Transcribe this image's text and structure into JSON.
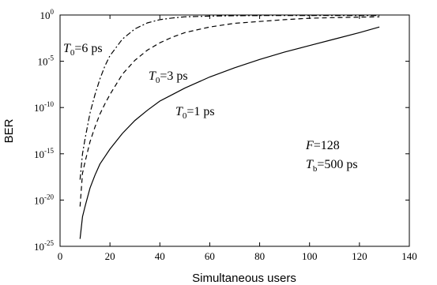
{
  "chart_data": {
    "type": "line",
    "xlabel": "Simultaneous users",
    "ylabel": "BER",
    "xlim": [
      0,
      140
    ],
    "x_ticks": [
      0,
      20,
      40,
      60,
      80,
      100,
      120,
      140
    ],
    "y_scale": "log",
    "ylim_exponent": [
      -25,
      0
    ],
    "y_ticks": [
      {
        "base": "10",
        "exp": "0"
      },
      {
        "base": "10",
        "exp": "-5"
      },
      {
        "base": "10",
        "exp": "-10"
      },
      {
        "base": "10",
        "exp": "-15"
      },
      {
        "base": "10",
        "exp": "-20"
      },
      {
        "base": "10",
        "exp": "-25"
      }
    ],
    "grid": false,
    "series": [
      {
        "name": "T0=1 ps",
        "style": "solid",
        "color": "#000000",
        "x": [
          8,
          9,
          10,
          12,
          14,
          16,
          18,
          20,
          25,
          30,
          35,
          40,
          45,
          50,
          55,
          60,
          70,
          80,
          90,
          100,
          110,
          120,
          128
        ],
        "log10_ber": [
          -24.2,
          -21.8,
          -20.7,
          -18.7,
          -17.3,
          -16.1,
          -15.3,
          -14.5,
          -12.8,
          -11.4,
          -10.3,
          -9.3,
          -8.6,
          -7.9,
          -7.3,
          -6.7,
          -5.7,
          -4.8,
          -4.0,
          -3.3,
          -2.6,
          -1.9,
          -1.3
        ]
      },
      {
        "name": "T0=3 ps",
        "style": "dashed",
        "color": "#000000",
        "x": [
          8,
          9,
          10,
          12,
          14,
          16,
          18,
          20,
          25,
          30,
          35,
          40,
          45,
          50,
          60,
          70,
          80,
          90,
          100,
          110,
          120,
          128
        ],
        "log10_ber": [
          -20.7,
          -17.1,
          -15.9,
          -13.7,
          -12.1,
          -10.7,
          -9.6,
          -8.6,
          -6.4,
          -4.9,
          -3.8,
          -3.0,
          -2.4,
          -1.9,
          -1.3,
          -0.9,
          -0.7,
          -0.5,
          -0.35,
          -0.28,
          -0.23,
          -0.2
        ]
      },
      {
        "name": "T0=6 ps",
        "style": "dashdot",
        "color": "#000000",
        "x": [
          8,
          9,
          10,
          12,
          14,
          16,
          18,
          20,
          25,
          30,
          35,
          40,
          45,
          50,
          60,
          70,
          80,
          100,
          128
        ],
        "log10_ber": [
          -17.8,
          -15.0,
          -13.4,
          -10.6,
          -8.6,
          -6.9,
          -5.5,
          -4.4,
          -2.6,
          -1.5,
          -0.85,
          -0.5,
          -0.32,
          -0.2,
          -0.12,
          -0.08,
          -0.06,
          -0.05,
          -0.05
        ]
      }
    ],
    "annotations": {
      "t6": {
        "label": "T",
        "sub": "0",
        "rest": "=6 ps"
      },
      "t3": {
        "label": "T",
        "sub": "0",
        "rest": "=3 ps"
      },
      "t1": {
        "label": "T",
        "sub": "0",
        "rest": "=1 ps"
      },
      "f": {
        "label": "F",
        "rest": "=128"
      },
      "tb": {
        "label": "T",
        "sub": "b",
        "rest": "=500 ps"
      }
    }
  }
}
